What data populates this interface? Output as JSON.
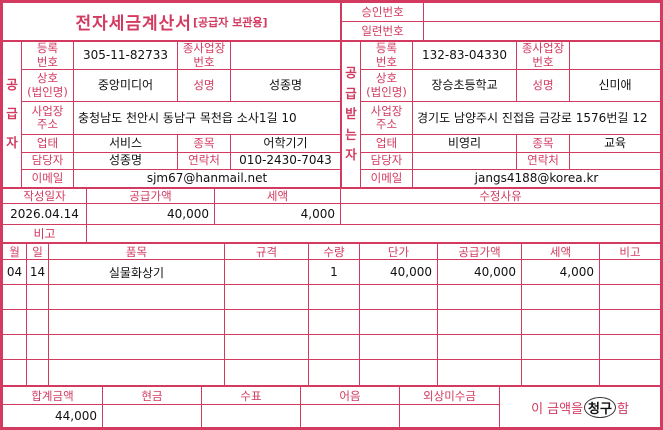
{
  "colors": {
    "accent": "#d23a60",
    "value_text": "#111111"
  },
  "header": {
    "title": "전자세금계산서",
    "title_note": "[공급자 보관용]",
    "approval_label": "승인번호",
    "approval_value": "",
    "serial_label": "일련번호",
    "serial_value": ""
  },
  "supplier": {
    "side_label": "공급자",
    "reg_label": "등록\n번호",
    "reg_value": "305-11-82733",
    "branch_label": "종사업장\n번호",
    "branch_value": "",
    "company_label": "상호\n(법인명)",
    "company_value": "중앙미디어",
    "ceo_label": "성명",
    "ceo_value": "성종명",
    "address_label": "사업장\n주소",
    "address_value": "충청남도 천안시 동남구 목천읍 소사1길 10",
    "biztype_label": "업태",
    "biztype_value": "서비스",
    "bizclass_label": "종목",
    "bizclass_value": "어학기기",
    "manager_label": "담당자",
    "manager_value": "성종명",
    "phone_label": "연락처",
    "phone_value": "010-2430-7043",
    "email_label": "이메일",
    "email_value": "sjm67@hanmail.net"
  },
  "buyer": {
    "side_label": "공급받는자",
    "reg_label": "등록\n번호",
    "reg_value": "132-83-04330",
    "branch_label": "종사업장\n번호",
    "branch_value": "",
    "company_label": "상호\n(법인명)",
    "company_value": "장승초등학교",
    "ceo_label": "성명",
    "ceo_value": "신미애",
    "address_label": "사업장\n주소",
    "address_value": "경기도 남양주시 진접읍 금강로 1576번길 12",
    "biztype_label": "업태",
    "biztype_value": "비영리",
    "bizclass_label": "종목",
    "bizclass_value": "교육",
    "manager_label": "담당자",
    "manager_value": "",
    "phone_label": "연락처",
    "phone_value": "",
    "email_label": "이메일",
    "email_value": "jangs4188@korea.kr"
  },
  "summary": {
    "date_label": "작성일자",
    "date_value": "2026.04.14",
    "supply_label": "공급가액",
    "supply_value": "40,000",
    "tax_label": "세액",
    "tax_value": "4,000",
    "reason_label": "수정사유",
    "reason_value": "",
    "remark_label": "비고",
    "remark_value": ""
  },
  "items": {
    "headers": [
      "월",
      "일",
      "품목",
      "규격",
      "수량",
      "단가",
      "공급가액",
      "세액",
      "비고"
    ],
    "rows": [
      {
        "month": "04",
        "day": "14",
        "name": "실물화상기",
        "spec": "",
        "qty": "1",
        "unit_price": "40,000",
        "supply": "40,000",
        "tax": "4,000",
        "note": ""
      },
      {
        "month": "",
        "day": "",
        "name": "",
        "spec": "",
        "qty": "",
        "unit_price": "",
        "supply": "",
        "tax": "",
        "note": ""
      },
      {
        "month": "",
        "day": "",
        "name": "",
        "spec": "",
        "qty": "",
        "unit_price": "",
        "supply": "",
        "tax": "",
        "note": ""
      },
      {
        "month": "",
        "day": "",
        "name": "",
        "spec": "",
        "qty": "",
        "unit_price": "",
        "supply": "",
        "tax": "",
        "note": ""
      },
      {
        "month": "",
        "day": "",
        "name": "",
        "spec": "",
        "qty": "",
        "unit_price": "",
        "supply": "",
        "tax": "",
        "note": ""
      }
    ]
  },
  "footer": {
    "total_label": "합계금액",
    "total_value": "44,000",
    "cash_label": "현금",
    "cash_value": "",
    "check_label": "수표",
    "check_value": "",
    "bill_label": "어음",
    "bill_value": "",
    "credit_label": "외상미수금",
    "credit_value": "",
    "claim_prefix": "이 금액을 ",
    "claim_marked": "청구",
    "claim_suffix": "함"
  }
}
